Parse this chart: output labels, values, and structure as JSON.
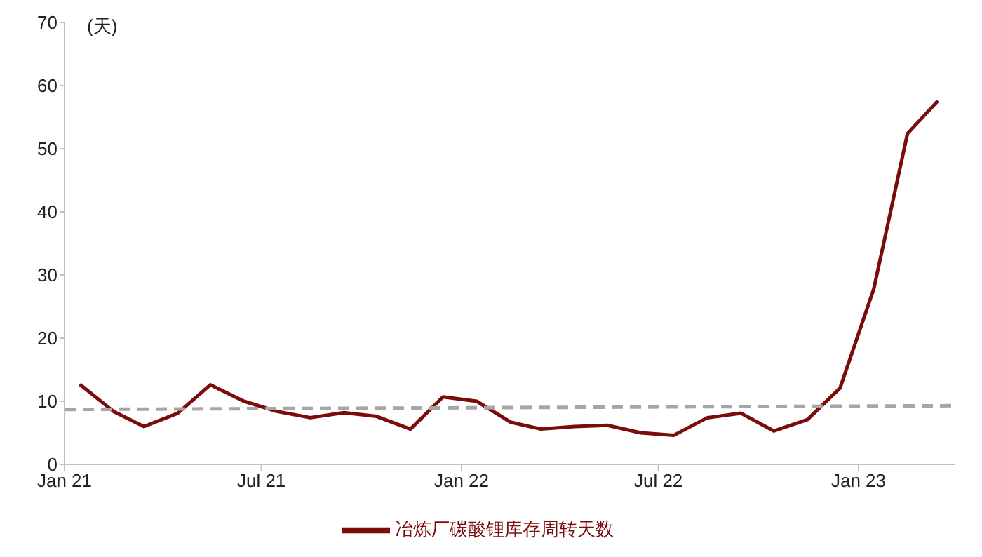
{
  "chart_data": {
    "type": "line",
    "ylabel": "(天)",
    "xlim": [
      "2021-01-01",
      "2023-03-31"
    ],
    "xticks": [
      {
        "value": "2021-01-01",
        "label": "Jan 21"
      },
      {
        "value": "2021-07-01",
        "label": "Jul 21"
      },
      {
        "value": "2022-01-01",
        "label": "Jan 22"
      },
      {
        "value": "2022-07-01",
        "label": "Jul 22"
      },
      {
        "value": "2023-01-01",
        "label": "Jan 23"
      }
    ],
    "ylim": [
      0,
      70
    ],
    "yticks": [
      0,
      10,
      20,
      30,
      40,
      50,
      60,
      70
    ],
    "grid": false,
    "legend": "bottom",
    "marker": "none",
    "series": [
      {
        "name": "冶炼厂碳酸锂库存周转天数",
        "color": "#7b0c0c",
        "line_style": "solid",
        "x": [
          "2021-01-15",
          "2021-02-15",
          "2021-03-15",
          "2021-04-15",
          "2021-05-15",
          "2021-06-15",
          "2021-07-15",
          "2021-08-15",
          "2021-09-15",
          "2021-10-15",
          "2021-11-15",
          "2021-12-15",
          "2022-01-15",
          "2022-02-15",
          "2022-03-15",
          "2022-04-15",
          "2022-05-15",
          "2022-06-15",
          "2022-07-15",
          "2022-08-15",
          "2022-09-15",
          "2022-10-15",
          "2022-11-15",
          "2022-12-15",
          "2023-01-15",
          "2023-02-15",
          "2023-03-15"
        ],
        "values": [
          12.7,
          8.4,
          6.0,
          8.1,
          12.6,
          10.0,
          8.4,
          7.4,
          8.2,
          7.6,
          5.6,
          10.7,
          10.0,
          6.7,
          5.6,
          6.0,
          6.2,
          5.0,
          4.6,
          7.4,
          8.1,
          5.3,
          7.1,
          12.1,
          27.8,
          52.4,
          57.6
        ]
      },
      {
        "type": "line",
        "color": "#a6a6a6",
        "line_style": "dashed",
        "x": [
          "2021-01-01",
          "2023-03-31"
        ],
        "values": [
          8.7,
          9.3
        ]
      }
    ]
  }
}
